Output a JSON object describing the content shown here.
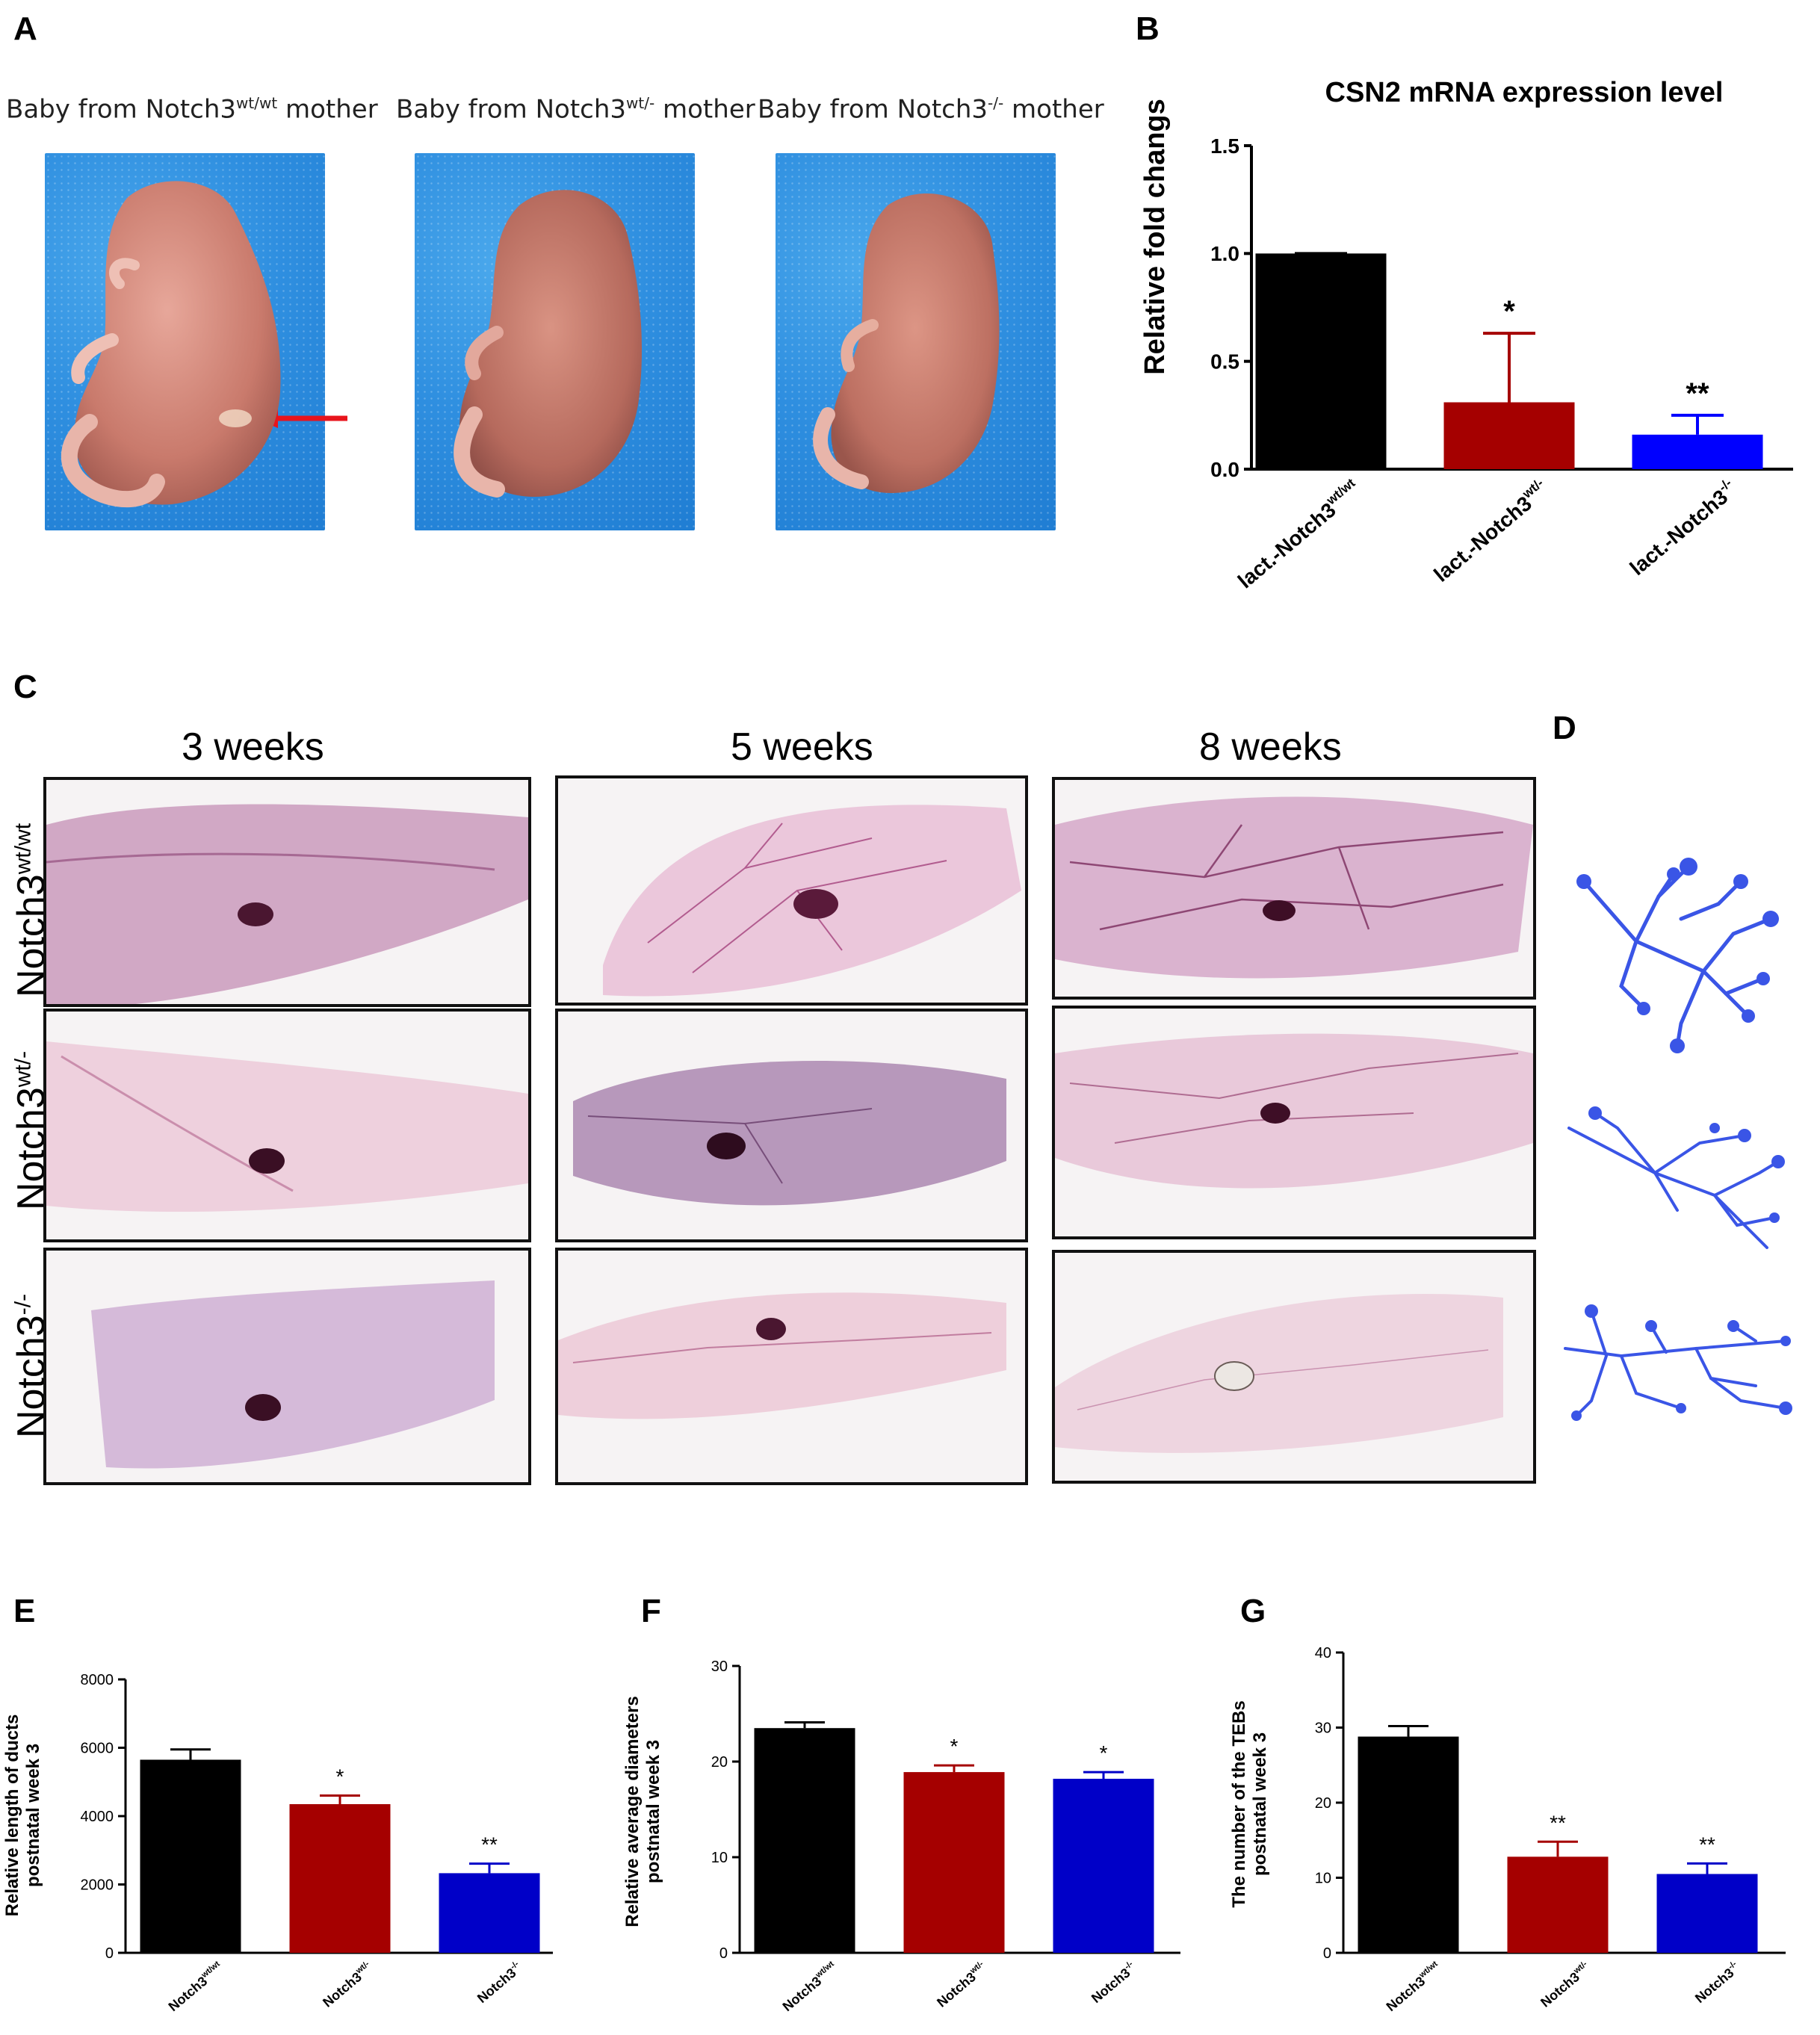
{
  "panels": {
    "A": {
      "letter": "A",
      "captions": [
        {
          "prefix": "Baby from Notch3",
          "sup": "wt/wt",
          "suffix": " mother"
        },
        {
          "prefix": "Baby from Notch3",
          "sup": "wt/-",
          "suffix": " mother"
        },
        {
          "prefix": "Baby from Notch3",
          "sup": "-/-",
          "suffix": " mother"
        }
      ]
    },
    "B": {
      "letter": "B"
    },
    "C": {
      "letter": "C",
      "weeks": [
        "3 weeks",
        "5 weeks",
        "8 weeks"
      ],
      "rows": [
        {
          "base": "Notch3",
          "sup": "wt/wt"
        },
        {
          "base": "Notch3",
          "sup": "wt/-"
        },
        {
          "base": "Notch3",
          "sup": "-/-"
        }
      ]
    },
    "D": {
      "letter": "D"
    },
    "E": {
      "letter": "E"
    },
    "F": {
      "letter": "F"
    },
    "G": {
      "letter": "G"
    }
  },
  "colors": {
    "black": "#000000",
    "red": "#a50000",
    "blue": "#0000ff",
    "dark_blue": "#0000c8",
    "tracing": "#3a55e6",
    "stain": "#8a2a6a"
  },
  "chart_data": [
    {
      "id": "B",
      "type": "bar",
      "title": "CSN2 mRNA expression level",
      "ylabel": "Relative fold changs",
      "ylim": [
        0,
        1.5
      ],
      "yticks": [
        "0.0",
        "0.5",
        "1.0",
        "1.5"
      ],
      "categories": [
        {
          "base": "lact.-Notch3",
          "sup": "wt/wt"
        },
        {
          "base": "lact.-Notch3",
          "sup": "wt/-"
        },
        {
          "base": "lact.-Notch3",
          "sup": "-/-"
        }
      ],
      "values": [
        1.0,
        0.31,
        0.16
      ],
      "errors": [
        0,
        0.32,
        0.09
      ],
      "significance": [
        "",
        "*",
        "**"
      ],
      "colors": [
        "#000000",
        "#a50000",
        "#0000ff"
      ]
    },
    {
      "id": "E",
      "type": "bar",
      "ylabel_lines": [
        "Relative length of ducts",
        "postnatal week 3"
      ],
      "ylim": [
        0,
        8000
      ],
      "yticks": [
        "0",
        "2000",
        "4000",
        "6000",
        "8000"
      ],
      "categories": [
        {
          "base": "Notch3",
          "sup": "wt/wt"
        },
        {
          "base": "Notch3",
          "sup": "wt/-"
        },
        {
          "base": "Notch3",
          "sup": "-/-"
        }
      ],
      "values": [
        5650,
        4350,
        2330
      ],
      "errors": [
        300,
        250,
        280
      ],
      "significance": [
        "",
        "*",
        "**"
      ],
      "colors": [
        "#000000",
        "#a50000",
        "#0000c8"
      ]
    },
    {
      "id": "F",
      "type": "bar",
      "ylabel_lines": [
        "Relative average diameters",
        "postnatal week 3"
      ],
      "ylim": [
        0,
        30
      ],
      "yticks": [
        "0",
        "10",
        "20",
        "30"
      ],
      "categories": [
        {
          "base": "Notch3",
          "sup": "wt/wt"
        },
        {
          "base": "Notch3",
          "sup": "wt/-"
        },
        {
          "base": "Notch3",
          "sup": "-/-"
        }
      ],
      "values": [
        23.5,
        18.9,
        18.2
      ],
      "errors": [
        0.6,
        0.7,
        0.7
      ],
      "significance": [
        "",
        "*",
        "*"
      ],
      "colors": [
        "#000000",
        "#a50000",
        "#0000c8"
      ]
    },
    {
      "id": "G",
      "type": "bar",
      "ylabel_lines": [
        "The number of the TEBs",
        "postnatal week 3"
      ],
      "ylim": [
        0,
        40
      ],
      "yticks": [
        "0",
        "10",
        "20",
        "30",
        "40"
      ],
      "categories": [
        {
          "base": "Notch3",
          "sup": "wt/wt"
        },
        {
          "base": "Notch3",
          "sup": "wt/-"
        },
        {
          "base": "Notch3",
          "sup": "-/-"
        }
      ],
      "values": [
        28.8,
        12.8,
        10.5
      ],
      "errors": [
        1.4,
        2.0,
        1.4
      ],
      "significance": [
        "",
        "**",
        "**"
      ],
      "colors": [
        "#000000",
        "#a50000",
        "#0000c8"
      ]
    }
  ]
}
